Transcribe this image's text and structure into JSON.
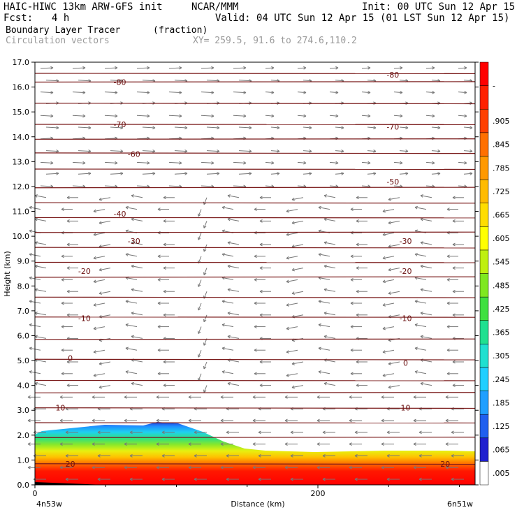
{
  "header": {
    "title_left": "HAIC-HIWC 13km ARW-GFS init",
    "org": "NCAR/MMM",
    "init": "Init: 00 UTC Sun 12 Apr 15",
    "fcst_label": "Fcst:",
    "fcst_value": "4 h",
    "valid": "Valid: 04 UTC Sun 12 Apr 15 (01 LST Sun 12 Apr 15)",
    "field1_name": "Boundary Layer Tracer",
    "field1_units": "(fraction)",
    "field2_name": "Circulation vectors",
    "xy_range": "XY= 259.5, 91.6 to 274.6,110.2"
  },
  "colors": {
    "contour": "#7a1a1a",
    "vector": "#777777",
    "scale": [
      "#ffffff",
      "#1f1fcf",
      "#1f5fef",
      "#1f9fff",
      "#1fcfff",
      "#1fe0d0",
      "#1fe090",
      "#3fe040",
      "#7fe820",
      "#bff010",
      "#ffff00",
      "#ffdd00",
      "#ffbb00",
      "#ff9900",
      "#ff7000",
      "#ff4000",
      "#ff2000",
      "#ff0000"
    ]
  },
  "chart_data": {
    "type": "heatmap",
    "title": "Boundary Layer Tracer",
    "ylabel": "Height (km)",
    "xlabel": "Distance (km)",
    "ylim": [
      0,
      17
    ],
    "y_ticks": [
      "0.0",
      "1.0",
      "2.0",
      "3.0",
      "4.0",
      "5.0",
      "6.0",
      "7.0",
      "8.0",
      "9.0",
      "10.0",
      "11.0",
      "12.0",
      "13.0",
      "14.0",
      "15.0",
      "16.0",
      "17.0"
    ],
    "x_ticks": [
      "0",
      "200"
    ],
    "x_end_labels": [
      "4n53w",
      "6n51w"
    ],
    "colorbar_labels": [
      ".005",
      ".065",
      ".125",
      ".185",
      ".245",
      ".305",
      ".365",
      ".425",
      ".485",
      ".545",
      ".605",
      ".665",
      ".725",
      ".785",
      ".845",
      ".905",
      "-"
    ],
    "colorbar_top_label": "-",
    "contour_labels": [
      {
        "text": "-80",
        "x": 60,
        "z": 16.2
      },
      {
        "text": "-80",
        "x": 253,
        "z": 16.5
      },
      {
        "text": "-70",
        "x": 60,
        "z": 14.5
      },
      {
        "text": "-70",
        "x": 253,
        "z": 14.4
      },
      {
        "text": "-60",
        "x": 70,
        "z": 13.3
      },
      {
        "text": "-50",
        "x": 253,
        "z": 12.2
      },
      {
        "text": "-40",
        "x": 60,
        "z": 10.9
      },
      {
        "text": "-30",
        "x": 70,
        "z": 9.8
      },
      {
        "text": "-30",
        "x": 262,
        "z": 9.8
      },
      {
        "text": "-20",
        "x": 35,
        "z": 8.6
      },
      {
        "text": "-20",
        "x": 262,
        "z": 8.6
      },
      {
        "text": "-10",
        "x": 35,
        "z": 6.7
      },
      {
        "text": "-10",
        "x": 262,
        "z": 6.7
      },
      {
        "text": "0",
        "x": 25,
        "z": 5.1
      },
      {
        "text": "0",
        "x": 262,
        "z": 4.9
      },
      {
        "text": "10",
        "x": 18,
        "z": 3.1
      },
      {
        "text": "10",
        "x": 262,
        "z": 3.1
      },
      {
        "text": "20",
        "x": 25,
        "z": 0.85
      },
      {
        "text": "20",
        "x": 290,
        "z": 0.85
      }
    ],
    "contour_levels_z": [
      0.85,
      1.9,
      2.5,
      3.1,
      3.7,
      4.2,
      5.05,
      5.85,
      6.75,
      7.55,
      8.35,
      8.95,
      9.55,
      10.15,
      10.75,
      11.35,
      11.95,
      12.7,
      13.35,
      13.9,
      14.5,
      15.35,
      16.2,
      16.55
    ]
  }
}
